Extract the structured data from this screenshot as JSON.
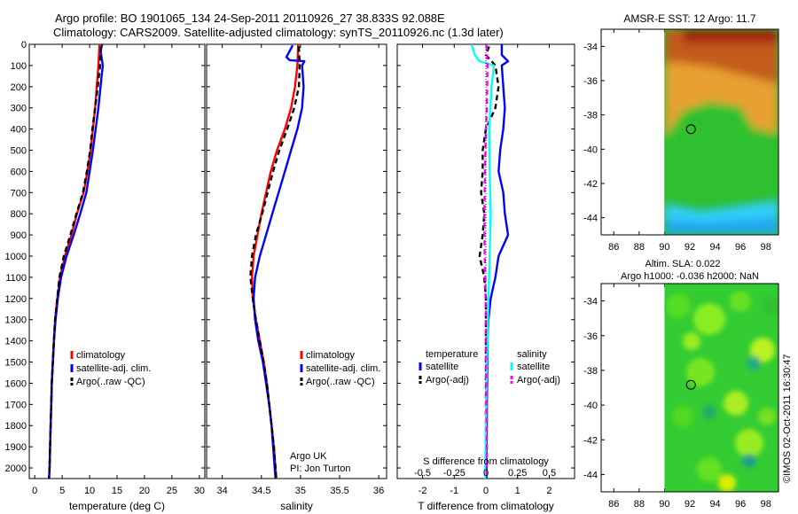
{
  "title_line1": "Argo profile: BO 1901065_134 24-Sep-2011 20110926_27 38.833S 92.088E",
  "title_line2": "Climatology: CARS2009. Satellite-adjusted climatology: synTS_20110926.nc (1.3d later)",
  "side_text": "©IMOS 02-Oct-2011 16:30:47",
  "colors": {
    "climatology": "#ff0000",
    "satellite": "#0000ff",
    "argo": "#000000",
    "sal_satellite": "#00ffff",
    "sal_argo": "#ff00ff",
    "sst_warm": "#d2691e",
    "sst_mid": "#2ec02e",
    "sst_cool": "#33ccff",
    "sla_green": "#33cc33"
  },
  "chart_data": [
    {
      "id": "temperature",
      "type": "line",
      "xlabel": "temperature (deg C)",
      "ylim": [
        2050,
        0
      ],
      "xlim": [
        -1,
        31
      ],
      "xticks": [
        0,
        5,
        10,
        15,
        20,
        25,
        30
      ],
      "yticks": [
        0,
        100,
        200,
        300,
        400,
        500,
        600,
        700,
        800,
        900,
        1000,
        1100,
        1200,
        1300,
        1400,
        1500,
        1600,
        1700,
        1800,
        1900,
        2000
      ],
      "legend": [
        "climatology",
        "satellite-adj. clim.",
        "Argo(..raw -QC)"
      ],
      "legend_position": "lower-center",
      "series": [
        {
          "name": "climatology",
          "color": "#ff0000",
          "dash": "",
          "points": [
            [
              11.8,
              0
            ],
            [
              11.6,
              100
            ],
            [
              11.3,
              200
            ],
            [
              11.0,
              300
            ],
            [
              10.6,
              400
            ],
            [
              10.2,
              500
            ],
            [
              9.6,
              600
            ],
            [
              8.9,
              700
            ],
            [
              7.7,
              800
            ],
            [
              6.7,
              900
            ],
            [
              5.5,
              1000
            ],
            [
              4.6,
              1100
            ],
            [
              4.1,
              1200
            ],
            [
              3.7,
              1300
            ],
            [
              3.5,
              1400
            ],
            [
              3.3,
              1500
            ],
            [
              3.1,
              1600
            ],
            [
              3.0,
              1700
            ],
            [
              2.9,
              1800
            ],
            [
              2.8,
              1900
            ],
            [
              2.7,
              2000
            ],
            [
              2.6,
              2050
            ]
          ]
        },
        {
          "name": "satellite-adj. clim.",
          "color": "#0000ff",
          "dash": "",
          "points": [
            [
              12.3,
              0
            ],
            [
              12.0,
              30
            ],
            [
              12.4,
              100
            ],
            [
              12.0,
              200
            ],
            [
              11.6,
              300
            ],
            [
              11.1,
              400
            ],
            [
              10.6,
              500
            ],
            [
              10.0,
              600
            ],
            [
              9.4,
              700
            ],
            [
              8.3,
              800
            ],
            [
              7.1,
              900
            ],
            [
              5.8,
              1000
            ],
            [
              4.8,
              1100
            ],
            [
              4.2,
              1200
            ],
            [
              3.8,
              1300
            ],
            [
              3.5,
              1400
            ],
            [
              3.3,
              1500
            ],
            [
              3.1,
              1600
            ],
            [
              3.0,
              1700
            ],
            [
              2.9,
              1800
            ],
            [
              2.8,
              1900
            ],
            [
              2.7,
              2000
            ],
            [
              2.6,
              2050
            ]
          ]
        },
        {
          "name": "Argo(..raw -QC)",
          "color": "#000000",
          "dash": "6,4",
          "points": [
            [
              12.1,
              10
            ],
            [
              11.9,
              100
            ],
            [
              11.5,
              200
            ],
            [
              11.0,
              300
            ],
            [
              10.5,
              400
            ],
            [
              10.1,
              500
            ],
            [
              9.5,
              600
            ],
            [
              8.8,
              700
            ],
            [
              7.6,
              800
            ],
            [
              6.5,
              900
            ],
            [
              5.3,
              1000
            ],
            [
              4.5,
              1100
            ],
            [
              4.1,
              1200
            ],
            [
              3.7,
              1300
            ],
            [
              3.5,
              1400
            ],
            [
              3.3,
              1500
            ],
            [
              3.1,
              1600
            ],
            [
              3.0,
              1700
            ],
            [
              2.9,
              1800
            ],
            [
              2.8,
              1900
            ],
            [
              2.7,
              2000
            ],
            [
              2.6,
              2050
            ]
          ]
        }
      ]
    },
    {
      "id": "salinity",
      "type": "line",
      "xlabel": "salinity",
      "ylim": [
        2050,
        0
      ],
      "xlim": [
        33.8,
        36.1
      ],
      "xticks": [
        34,
        34.5,
        35,
        35.5,
        36
      ],
      "xticklabels": [
        "34",
        "34.5",
        "35",
        "35.5",
        "36"
      ],
      "legend": [
        "climatology",
        "satellite-adj. clim.",
        "Argo(..raw -QC)"
      ],
      "legend_position": "lower-right",
      "annotation": [
        "Argo UK",
        "PI: Jon Turton"
      ],
      "series": [
        {
          "name": "climatology",
          "color": "#ff0000",
          "dash": "",
          "points": [
            [
              34.97,
              0
            ],
            [
              34.96,
              100
            ],
            [
              34.93,
              200
            ],
            [
              34.88,
              300
            ],
            [
              34.8,
              400
            ],
            [
              34.7,
              500
            ],
            [
              34.62,
              600
            ],
            [
              34.56,
              700
            ],
            [
              34.5,
              800
            ],
            [
              34.45,
              900
            ],
            [
              34.4,
              1000
            ],
            [
              34.38,
              1100
            ],
            [
              34.39,
              1200
            ],
            [
              34.43,
              1300
            ],
            [
              34.48,
              1400
            ],
            [
              34.53,
              1500
            ],
            [
              34.57,
              1600
            ],
            [
              34.6,
              1700
            ],
            [
              34.63,
              1800
            ],
            [
              34.66,
              1900
            ],
            [
              34.68,
              2000
            ],
            [
              34.69,
              2050
            ]
          ]
        },
        {
          "name": "satellite-adj. clim.",
          "color": "#0000ff",
          "dash": "",
          "points": [
            [
              34.9,
              5
            ],
            [
              34.82,
              60
            ],
            [
              34.86,
              75
            ],
            [
              35.05,
              80
            ],
            [
              35.02,
              100
            ],
            [
              35.04,
              200
            ],
            [
              35.02,
              300
            ],
            [
              34.96,
              400
            ],
            [
              34.88,
              500
            ],
            [
              34.8,
              600
            ],
            [
              34.72,
              700
            ],
            [
              34.64,
              800
            ],
            [
              34.56,
              900
            ],
            [
              34.48,
              1000
            ],
            [
              34.42,
              1100
            ],
            [
              34.4,
              1200
            ],
            [
              34.42,
              1300
            ],
            [
              34.46,
              1400
            ],
            [
              34.52,
              1500
            ],
            [
              34.56,
              1600
            ],
            [
              34.6,
              1700
            ],
            [
              34.63,
              1800
            ],
            [
              34.65,
              1900
            ],
            [
              34.67,
              2000
            ],
            [
              34.68,
              2050
            ]
          ]
        },
        {
          "name": "Argo(..raw -QC)",
          "color": "#000000",
          "dash": "6,4",
          "points": [
            [
              34.98,
              10
            ],
            [
              34.99,
              100
            ],
            [
              34.98,
              200
            ],
            [
              34.92,
              300
            ],
            [
              34.83,
              400
            ],
            [
              34.73,
              500
            ],
            [
              34.65,
              600
            ],
            [
              34.58,
              700
            ],
            [
              34.51,
              800
            ],
            [
              34.43,
              900
            ],
            [
              34.38,
              1000
            ],
            [
              34.36,
              1100
            ],
            [
              34.39,
              1200
            ],
            [
              34.43,
              1300
            ],
            [
              34.48,
              1400
            ],
            [
              34.53,
              1500
            ],
            [
              34.57,
              1600
            ],
            [
              34.6,
              1700
            ],
            [
              34.63,
              1800
            ],
            [
              34.66,
              1900
            ],
            [
              34.68,
              2000
            ],
            [
              34.69,
              2050
            ]
          ]
        }
      ]
    },
    {
      "id": "difference",
      "type": "line",
      "xlabel": "T difference from climatology",
      "xlabel_top": "S difference from climatology",
      "ylim": [
        2050,
        0
      ],
      "xlim": [
        -2.8,
        2.8
      ],
      "xticks": [
        -2,
        -1,
        0,
        1,
        2
      ],
      "sticks": [
        -0.5,
        -0.25,
        0,
        0.25,
        0.5
      ],
      "legend_temperature": {
        "title": "temperature",
        "items": [
          "satellite",
          "Argo(-adj)"
        ]
      },
      "legend_salinity": {
        "title": "salinity",
        "items": [
          "satellite",
          "Argo(-adj)"
        ]
      },
      "series": [
        {
          "name": "temperature satellite",
          "color": "#0000ff",
          "dash": "",
          "points": [
            [
              0.5,
              0
            ],
            [
              0.5,
              50
            ],
            [
              0.7,
              80
            ],
            [
              0.5,
              100
            ],
            [
              0.55,
              200
            ],
            [
              0.6,
              300
            ],
            [
              0.55,
              400
            ],
            [
              0.45,
              500
            ],
            [
              0.4,
              600
            ],
            [
              0.55,
              700
            ],
            [
              0.6,
              800
            ],
            [
              0.7,
              900
            ],
            [
              0.4,
              1000
            ],
            [
              0.3,
              1100
            ],
            [
              0.15,
              1200
            ],
            [
              0.08,
              1300
            ],
            [
              0.05,
              1400
            ],
            [
              0.05,
              1500
            ],
            [
              0.04,
              1600
            ],
            [
              0.03,
              1700
            ],
            [
              0.03,
              1800
            ],
            [
              0.02,
              1900
            ],
            [
              0.02,
              2000
            ],
            [
              0.02,
              2050
            ]
          ]
        },
        {
          "name": "temperature Argo(-adj)",
          "color": "#000000",
          "dash": "6,4",
          "points": [
            [
              0.1,
              10
            ],
            [
              0.0,
              50
            ],
            [
              0.3,
              100
            ],
            [
              0.4,
              200
            ],
            [
              0.3,
              300
            ],
            [
              0.0,
              400
            ],
            [
              -0.1,
              500
            ],
            [
              -0.1,
              600
            ],
            [
              -0.15,
              700
            ],
            [
              -0.05,
              800
            ],
            [
              -0.1,
              900
            ],
            [
              -0.2,
              1000
            ],
            [
              -0.05,
              1100
            ],
            [
              0.0,
              1200
            ],
            [
              0.0,
              1300
            ],
            [
              0.0,
              1400
            ],
            [
              0.0,
              1500
            ],
            [
              0.0,
              1600
            ],
            [
              0.0,
              1700
            ],
            [
              0.0,
              1800
            ],
            [
              0.0,
              1900
            ],
            [
              0.0,
              2000
            ],
            [
              0.0,
              2050
            ]
          ]
        },
        {
          "name": "salinity satellite",
          "color": "#00ffff",
          "dash": "",
          "points": [
            [
              -0.45,
              0
            ],
            [
              -0.35,
              50
            ],
            [
              -0.2,
              80
            ],
            [
              0.25,
              100
            ],
            [
              0.18,
              200
            ],
            [
              0.1,
              400
            ],
            [
              0.12,
              600
            ],
            [
              0.15,
              800
            ],
            [
              0.12,
              1000
            ],
            [
              0.08,
              1200
            ],
            [
              0.05,
              1400
            ],
            [
              0.02,
              1600
            ],
            [
              0.0,
              1800
            ],
            [
              -0.02,
              2000
            ],
            [
              -0.02,
              2050
            ]
          ]
        },
        {
          "name": "salinity Argo(-adj)",
          "color": "#ff00ff",
          "dash": "6,4",
          "points": [
            [
              0.02,
              5
            ],
            [
              0.05,
              100
            ],
            [
              0.03,
              300
            ],
            [
              0.0,
              400
            ],
            [
              -0.03,
              600
            ],
            [
              -0.05,
              800
            ],
            [
              -0.04,
              1000
            ],
            [
              -0.02,
              1100
            ],
            [
              0.0,
              1300
            ],
            [
              0.0,
              1500
            ],
            [
              0.02,
              1700
            ],
            [
              0.03,
              1900
            ],
            [
              0.03,
              2050
            ]
          ]
        }
      ]
    },
    {
      "id": "sst_map",
      "type": "heatmap",
      "title": "AMSR-E SST: 12 Argo: 11.7",
      "xlim": [
        85,
        99
      ],
      "ylim": [
        -45,
        -33
      ],
      "xticks": [
        86,
        88,
        90,
        92,
        94,
        96,
        98
      ],
      "yticks": [
        -34,
        -36,
        -38,
        -40,
        -42,
        -44
      ],
      "data_start_lon": 90,
      "argo_position": {
        "lon": 92.088,
        "lat": -38.833
      }
    },
    {
      "id": "sla_map",
      "type": "heatmap",
      "title_line1": "Altim. SLA: 0.022",
      "title_line2": "Argo h1000: -0.036 h2000: NaN",
      "xlim": [
        85,
        99
      ],
      "ylim": [
        -45,
        -33
      ],
      "xticks": [
        86,
        88,
        90,
        92,
        94,
        96,
        98
      ],
      "yticks": [
        -34,
        -36,
        -38,
        -40,
        -42,
        -44
      ],
      "data_start_lon": 90,
      "argo_position": {
        "lon": 92.088,
        "lat": -38.833
      }
    }
  ]
}
